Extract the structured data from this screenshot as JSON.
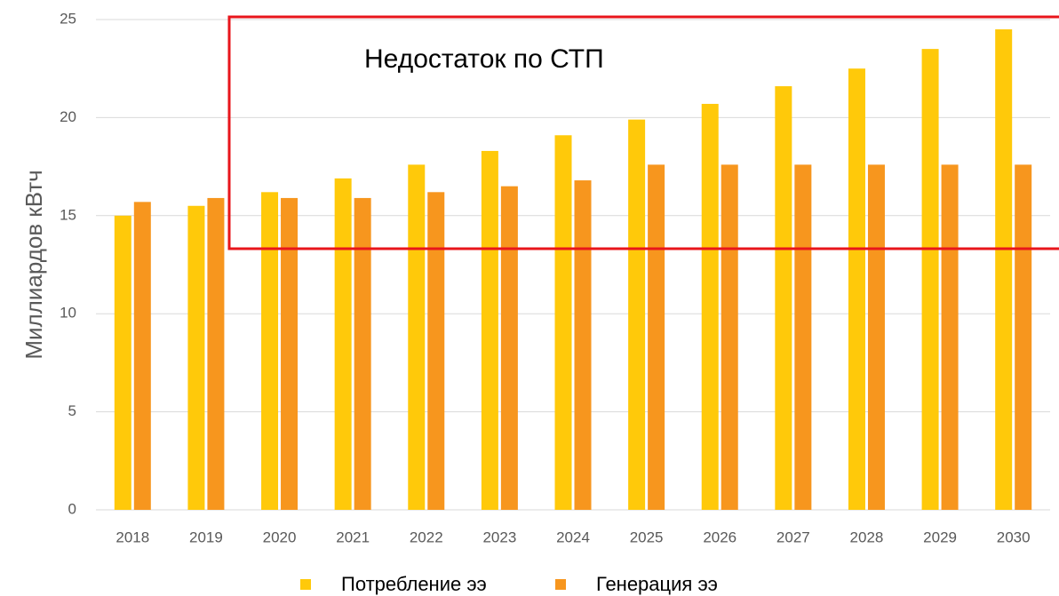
{
  "chart_data": {
    "type": "bar",
    "ylabel": "Миллиардов кВтч",
    "annotation": "Недостаток по СТП",
    "categories": [
      "2018",
      "2019",
      "2020",
      "2021",
      "2022",
      "2023",
      "2024",
      "2025",
      "2026",
      "2027",
      "2028",
      "2029",
      "2030"
    ],
    "series": [
      {
        "name": "Потребление ээ",
        "color": "#ffc90a",
        "values": [
          15.0,
          15.5,
          16.2,
          16.9,
          17.6,
          18.3,
          19.1,
          19.9,
          20.7,
          21.6,
          22.5,
          23.5,
          24.5
        ]
      },
      {
        "name": "Генерация ээ",
        "color": "#f7961e",
        "values": [
          15.7,
          15.9,
          15.9,
          15.9,
          16.2,
          16.5,
          16.8,
          17.6,
          17.6,
          17.6,
          17.6,
          17.6,
          17.6
        ]
      }
    ],
    "ylim": [
      0,
      25
    ],
    "yticks": [
      0,
      5,
      10,
      15,
      20,
      25
    ],
    "grid": true,
    "legend": "bottom"
  }
}
